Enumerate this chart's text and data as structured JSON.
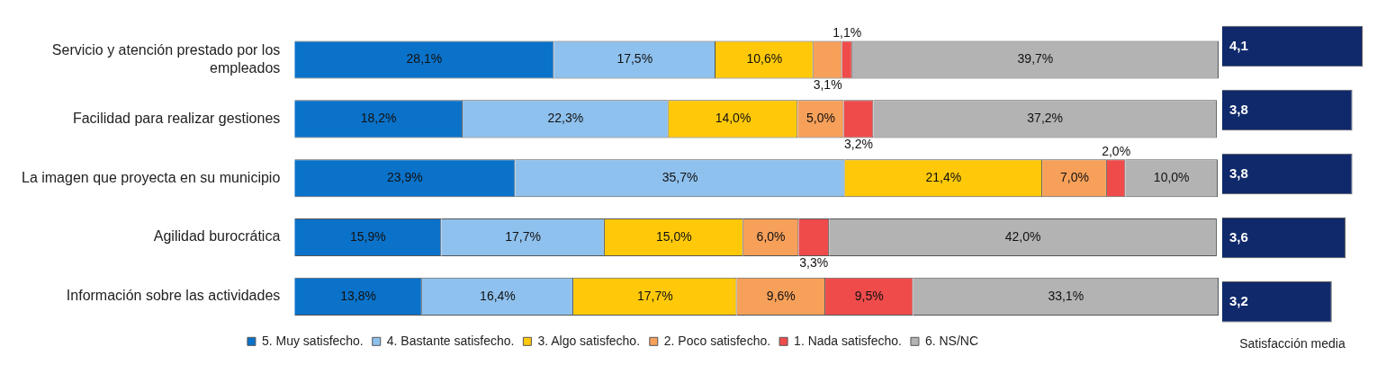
{
  "chart_data": [
    {
      "type": "bar",
      "orientation": "horizontal",
      "stacked": true,
      "tick_labels": "y",
      "grid": false,
      "legend": "bottom",
      "categories": [
        "Servicio y atención prestado por los empleados",
        "Facilidad para realizar gestiones",
        "La imagen que proyecta en su municipio",
        "Agilidad burocrática",
        "Información sobre las actividades"
      ],
      "series": [
        {
          "name": "5. Muy satisfecho.",
          "color": "#0b72c9",
          "values": [
            28.1,
            18.2,
            23.9,
            15.9,
            13.8
          ],
          "value_labels": [
            "28,1%",
            "18,2%",
            "23,9%",
            "15,9%",
            "13,8%"
          ]
        },
        {
          "name": "4. Bastante satisfecho.",
          "color": "#8fc1ee",
          "values": [
            17.5,
            22.3,
            35.7,
            17.7,
            16.4
          ],
          "value_labels": [
            "17,5%",
            "22,3%",
            "35,7%",
            "17,7%",
            "16,4%"
          ]
        },
        {
          "name": "3. Algo satisfecho.",
          "color": "#ffc90a",
          "values": [
            10.6,
            14.0,
            21.4,
            15.0,
            17.7
          ],
          "value_labels": [
            "10,6%",
            "14,0%",
            "21,4%",
            "15,0%",
            "17,7%"
          ]
        },
        {
          "name": "2. Poco satisfecho.",
          "color": "#f7a05a",
          "values": [
            3.1,
            5.0,
            7.0,
            6.0,
            9.6
          ],
          "value_labels": [
            "3,1%",
            "5,0%",
            "7,0%",
            "6,0%",
            "9,6%"
          ]
        },
        {
          "name": "1. Nada satisfecho.",
          "color": "#ef4b4b",
          "values": [
            1.1,
            3.2,
            2.0,
            3.3,
            9.5
          ],
          "value_labels": [
            "1,1%",
            "3,2%",
            "2,0%",
            "3,3%",
            "9,5%"
          ]
        },
        {
          "name": "6. NS/NC",
          "color": "#b3b3b3",
          "values": [
            39.7,
            37.2,
            10.0,
            42.0,
            33.1
          ],
          "value_labels": [
            "39,7%",
            "37,2%",
            "10,0%",
            "42,0%",
            "33,1%"
          ]
        }
      ]
    },
    {
      "type": "bar",
      "orientation": "horizontal",
      "tick_labels": false,
      "grid": false,
      "legend": false,
      "xlabel": "Satisfacción media",
      "categories": [
        null,
        null,
        null,
        null,
        null
      ],
      "series": [
        {
          "color": "#10296b",
          "values": [
            4.1,
            3.8,
            3.8,
            3.6,
            3.2
          ],
          "value_labels": [
            "4,1",
            "3,8",
            "3,8",
            "3,6",
            "3,2"
          ]
        }
      ]
    }
  ]
}
